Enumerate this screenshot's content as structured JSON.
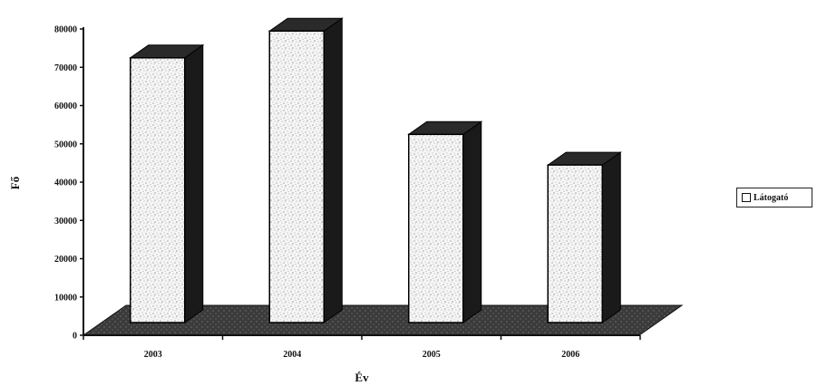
{
  "chart_data": {
    "type": "bar",
    "categories": [
      "2003",
      "2004",
      "2005",
      "2006"
    ],
    "series": [
      {
        "name": "Látogató",
        "values": [
          72000,
          79000,
          52000,
          44000
        ]
      }
    ],
    "xlabel": "Év",
    "ylabel": "Fő",
    "ylim": [
      0,
      80000
    ],
    "yticks": [
      "0",
      "10000",
      "20000",
      "30000",
      "40000",
      "50000",
      "60000",
      "70000",
      "80000"
    ],
    "legend": "right",
    "grid": false,
    "colors": {
      "bar_face": "#f4f4f4",
      "bar_side": "#1a1a1a",
      "bar_top": "#2a2a2a",
      "floor": "#3a3a3a"
    }
  }
}
